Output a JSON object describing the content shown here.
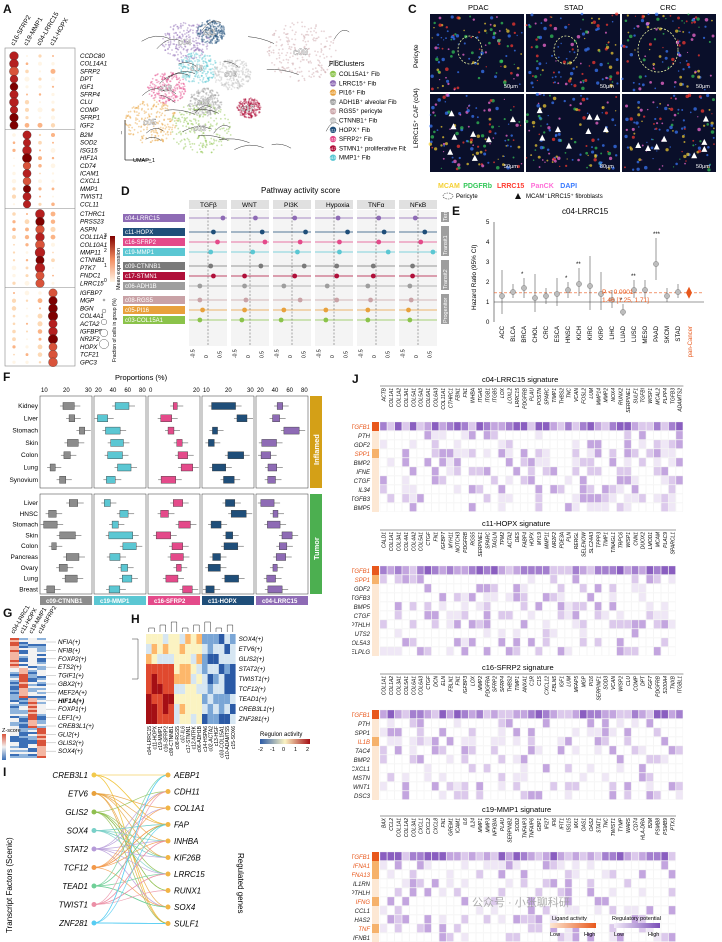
{
  "panels": {
    "A": "A",
    "B": "B",
    "C": "C",
    "D": "D",
    "E": "E",
    "F": "F",
    "G": "G",
    "H": "H",
    "I": "I",
    "J": "J"
  },
  "panelA": {
    "clusters": [
      "c16-SFRP2",
      "c19-MMP1",
      "c04-LRRC15",
      "c11-HOPX"
    ],
    "gene_groups": [
      [
        "CCDC80",
        "COL14A1",
        "SFRP2",
        "DPT",
        "IGF1",
        "SFRP4",
        "CLU",
        "COMP",
        "SFRP1",
        "IGF2"
      ],
      [
        "B2M",
        "SOD2",
        "ISG15",
        "HIF1A",
        "CD74",
        "ICAM1",
        "CXCL1",
        "MMP1",
        "TWIST1",
        "CCL11"
      ],
      [
        "CTHRC1",
        "PRSS23",
        "ASPN",
        "COL11A1",
        "COL10A1",
        "MMP11",
        "CTNNB1",
        "PTK7",
        "FNDC1",
        "LRRC15"
      ],
      [
        "IGFBP7",
        "MGP",
        "BGN",
        "COL4A1",
        "ACTA2",
        "IGFBP5",
        "NR2F2",
        "HOPX",
        "TCF21",
        "GPC3"
      ]
    ],
    "legend_mean": "Mean expression",
    "legend_frac": "Fraction of cells in group (%)",
    "colorbar_ticks": [
      "0",
      "1",
      "2",
      "3"
    ],
    "size_ticks": [
      "20",
      "40",
      "60",
      "80",
      "100"
    ]
  },
  "panelB": {
    "axis_x": "UMAP_1",
    "axis_y": "UMAP_2",
    "cluster_labels": [
      "c04",
      "c11",
      "c08",
      "c16",
      "c19",
      "c09",
      "c05",
      "c06",
      "c03",
      "c17"
    ],
    "legend_title": "FibClusters",
    "legend": [
      {
        "id": "c03",
        "label": "COL15A1⁺ Fib",
        "color": "#8bc34a"
      },
      {
        "id": "c04",
        "label": "LRRC15⁺ Fib",
        "color": "#8e6bb5"
      },
      {
        "id": "c05",
        "label": "PI16⁺ Fib",
        "color": "#e8a13c"
      },
      {
        "id": "c06",
        "label": "ADH1B⁺ alveolar Fib",
        "color": "#9e9e9e"
      },
      {
        "id": "c08",
        "label": "RGS5⁺ pericyte",
        "color": "#c9a2a6"
      },
      {
        "id": "c09",
        "label": "CTNNB1⁺ Fib",
        "color": "#bfbfbf"
      },
      {
        "id": "c11",
        "label": "HOPX⁺ Fib",
        "color": "#1f4e79"
      },
      {
        "id": "c16",
        "label": "SFRP2⁺ Fib",
        "color": "#e44a8a"
      },
      {
        "id": "c17",
        "label": "STMN1⁺ proliferative Fib",
        "color": "#b0103a"
      },
      {
        "id": "c19",
        "label": "MMP1⁺ Fib",
        "color": "#5bc7d3"
      }
    ]
  },
  "panelC": {
    "columns": [
      "PDAC",
      "STAD",
      "CRC"
    ],
    "rows": [
      "Pericyte",
      "LRRC15⁺ CAF (c04)"
    ],
    "scale": [
      "50μm",
      "50μm",
      "50μm",
      "50μm",
      "80μm",
      "50μm"
    ],
    "stain_labels": [
      {
        "text": "MCAM",
        "color": "#f5d033"
      },
      {
        "text": "PDGFRb",
        "color": "#34c759"
      },
      {
        "text": "LRRC15",
        "color": "#ff3b30"
      },
      {
        "text": "PanCK",
        "color": "#ff6fd8"
      },
      {
        "text": "DAPI",
        "color": "#3a7bff"
      }
    ],
    "legend_pericyte": "Pericyte",
    "legend_caf": "MCAM⁻LRRC15⁺ fibroblasts"
  },
  "panelD": {
    "title": "Pathway activity score",
    "pathways": [
      "TGFβ",
      "WNT",
      "PI3K",
      "Hypoxia",
      "TNFα",
      "NFκB"
    ],
    "groups": [
      {
        "name": "Terminal",
        "rows": [
          {
            "label": "c04-LRRC15",
            "color": "#8e6bb5"
          }
        ]
      },
      {
        "name": "Transit1",
        "rows": [
          {
            "label": "c11-HOPX",
            "color": "#1f4e79"
          },
          {
            "label": "c16-SFRP2",
            "color": "#e44a8a"
          },
          {
            "label": "c19-MMP1",
            "color": "#5bc7d3"
          }
        ]
      },
      {
        "name": "Transit2",
        "rows": [
          {
            "label": "c09-CTNNB1",
            "color": "#7a7a7a"
          },
          {
            "label": "c17-STMN1",
            "color": "#b0103a"
          },
          {
            "label": "c06-ADH1B",
            "color": "#9e9e9e"
          }
        ]
      },
      {
        "name": "Progenitor",
        "rows": [
          {
            "label": "c08-RGS5",
            "color": "#c9a2a6"
          },
          {
            "label": "c05-PI16",
            "color": "#e8a13c"
          },
          {
            "label": "c03-COL15A1",
            "color": "#8bc34a"
          }
        ]
      }
    ],
    "xticks": [
      "-0.5",
      "0",
      "0.5"
    ],
    "values": [
      [
        0.55,
        0.2,
        0.1,
        0.15,
        0.1,
        -0.1
      ],
      [
        0.2,
        0.45,
        0.5,
        0.5,
        0.3,
        0.25
      ],
      [
        0.35,
        0.55,
        0.3,
        0.2,
        0.1,
        0.1
      ],
      [
        0.1,
        0.1,
        0.2,
        0.2,
        0.45,
        0.55
      ],
      [
        0.1,
        0.4,
        0.45,
        0.1,
        -0.1,
        -0.2
      ],
      [
        0.2,
        -0.2,
        0.1,
        0.1,
        -0.1,
        -0.2
      ],
      [
        -0.3,
        -0.2,
        -0.3,
        -0.25,
        -0.3,
        -0.3
      ],
      [
        -0.3,
        -0.15,
        0.3,
        0.1,
        -0.2,
        -0.25
      ],
      [
        -0.2,
        -0.2,
        -0.3,
        -0.3,
        -0.3,
        -0.35
      ],
      [
        -0.3,
        -0.3,
        -0.4,
        -0.3,
        -0.3,
        -0.3
      ]
    ]
  },
  "panelE": {
    "title": "c04-LRRC15",
    "ylabel": "Hazard Ratio (95% CI)",
    "yticks": [
      "0",
      "1",
      "2",
      "3",
      "4",
      "5"
    ],
    "ylim": [
      0,
      5
    ],
    "categories": [
      "ACC",
      "BLCA",
      "BRCA",
      "CHOL",
      "CRC",
      "ESCA",
      "HNSC",
      "KICH",
      "KIRC",
      "KIRP",
      "LIHC",
      "LUAD",
      "LUSC",
      "MESO",
      "PAAD",
      "SKCM",
      "STAD"
    ],
    "hr": [
      1.3,
      1.5,
      1.7,
      1.2,
      1.3,
      1.4,
      1.6,
      1.9,
      1.8,
      1.4,
      1.1,
      0.5,
      1.6,
      1.6,
      2.9,
      1.3,
      1.5
    ],
    "lo": [
      0.4,
      1.2,
      1.2,
      0.5,
      0.9,
      0.8,
      1.2,
      1.3,
      0.6,
      0.6,
      0.7,
      0.3,
      1.2,
      1.2,
      2.1,
      1.0,
      1.2
    ],
    "hi": [
      2.6,
      1.9,
      2.2,
      2.4,
      1.7,
      2.2,
      2.0,
      2.7,
      3.3,
      2.5,
      1.6,
      0.9,
      2.1,
      2.1,
      4.2,
      1.7,
      1.9
    ],
    "stars": [
      "",
      "",
      "*",
      "",
      "",
      "",
      "*",
      "**",
      "",
      "",
      "",
      "*",
      "**",
      "",
      "***",
      "",
      ""
    ],
    "pan_label": "pan-Cancer",
    "pval": "P < 0.0001",
    "ci": "1.46 [1.25, 1.71]"
  },
  "panelF": {
    "title": "Proportions (%)",
    "inflamed_label": "Inflamed",
    "tumor_label": "Tumor",
    "inflamed_tissues": [
      "Kidney",
      "Liver",
      "Stomach",
      "Skin",
      "Colon",
      "Lung",
      "Synovium"
    ],
    "tumor_tissues": [
      "Liver",
      "HNSC",
      "Stomach",
      "Skin",
      "Colon",
      "Pancreas",
      "Ovary",
      "Lung",
      "Breast"
    ],
    "columns": [
      {
        "label": "c09-CTNNB1",
        "color": "#8c8c8c",
        "ticks": [
          "10",
          "20",
          "30"
        ]
      },
      {
        "label": "c19-MMP1",
        "color": "#5bc7d3",
        "ticks": [
          "20",
          "40",
          "60",
          "80"
        ]
      },
      {
        "label": "c16-SFRP2",
        "color": "#e44a8a",
        "ticks": [
          "0",
          "20"
        ]
      },
      {
        "label": "c11-HOPX",
        "color": "#1f4e79",
        "ticks": [
          "10",
          "20",
          "30"
        ]
      },
      {
        "label": "c04-LRRC15",
        "color": "#8e6bb5",
        "ticks": [
          "20",
          "40",
          "60",
          "80"
        ]
      }
    ]
  },
  "panelG": {
    "columns": [
      "c04-LRRC15",
      "c11-HOPX",
      "c19-MMP1",
      "c16-SFRP2"
    ],
    "genes": [
      "NFIA(+)",
      "NFIB(+)",
      "FOXP2(+)",
      "ETS2(+)",
      "TGIF1(+)",
      "GBX2(+)",
      "MEF2A(+)",
      "HIF1A(+)",
      "FOXP1(+)",
      "LEF1(+)",
      "CREB3L1(+)",
      "GLI2(+)",
      "GLIS2(+)",
      "SOX4(+)"
    ],
    "bold_gene": "HIF1A(+)",
    "scale_label": "Z-score",
    "scale_ticks": [
      "-2",
      "0",
      "2"
    ]
  },
  "panelH": {
    "genes": [
      "SOX4(+)",
      "ETV6(+)",
      "GLIS2(+)",
      "STAT2(+)",
      "TWIST1(+)",
      "TCF12(+)",
      "TEAD1(+)",
      "CREB3L1(+)",
      "ZNF281(+)"
    ],
    "columns": [
      "c04-LRRC15",
      "c11-HOPX",
      "c19-MMP1",
      "c16-SFRP2",
      "c09-CTNNB1",
      "c08-RGS5",
      "c07-IL6",
      "c17-STMN1",
      "c12-NTRK",
      "c06-ADH1B",
      "c14-HSPA6",
      "c02-ACTA2",
      "c13-HGF",
      "c03-COL15A1",
      "c10-ADAMTS5",
      "c15-SOX6"
    ],
    "scale_label": "Regulon activity",
    "scale_ticks": [
      "-2",
      "-1",
      "0",
      "1",
      "2"
    ]
  },
  "panelI": {
    "left_title": "Transcript Factors (Scenic)",
    "right_title": "Regulated genes",
    "tfs": [
      "CREB3L1",
      "ETV6",
      "GLIS2",
      "SOX4",
      "STAT2",
      "TCF12",
      "TEAD1",
      "TWIST1",
      "ZNF281"
    ],
    "genes": [
      "AEBP1",
      "CDH11",
      "COL1A1",
      "FAP",
      "INHBA",
      "KIF26B",
      "LRRC15",
      "RUNX1",
      "SOX4",
      "SULF1"
    ]
  },
  "panelJ": {
    "signatures": [
      {
        "title": "c04-LRRC15 signature",
        "ligands": [
          "TGFB1",
          "PTH",
          "GDF2",
          "SPP1",
          "BMP2",
          "IFNE",
          "CTGF",
          "IL34",
          "TGFB3",
          "BMP5"
        ],
        "orange": [
          "TGFB1",
          "SPP1"
        ],
        "receptors": [
          "ACTB",
          "COL1A1",
          "COL1A2",
          "COL3A1",
          "COL5A1",
          "COL5A2",
          "COL6A1",
          "COL6A3",
          "COL11A1",
          "CTHRC1",
          "FBN1",
          "FN1",
          "INHBA",
          "ITGA5",
          "ITGB1",
          "ITGB5",
          "LOX",
          "LOXL2",
          "LRRC15",
          "PDGFRB",
          "PLAU",
          "POSTN",
          "SPARC",
          "TIMP1",
          "THBS2",
          "TNC",
          "VCAN",
          "FOSL2",
          "LUM",
          "MMP14",
          "MMP2",
          "NOX4",
          "RUNX2",
          "SERPINE1",
          "SULF1",
          "TGFBI",
          "WISP1",
          "MCAL2",
          "PLPP4",
          "TGFB3",
          "ADAMTS2"
        ]
      },
      {
        "title": "c11-HOPX signature",
        "ligands": [
          "TGFB1",
          "SPP1",
          "GDF2",
          "TGFB3",
          "BMP5",
          "CTGF",
          "PTHLH",
          "UTS2",
          "COL5A3",
          "SELPLG"
        ],
        "orange": [
          "TGFB1",
          "SPP1"
        ],
        "receptors": [
          "CALD1",
          "COL1A1",
          "COL3A1",
          "COL4A1",
          "COL4A2",
          "COL5A1",
          "CTGF",
          "FN1",
          "IGFBP7",
          "MYH11",
          "NOTCH3",
          "PDGFRB",
          "RGS5",
          "SERPINE1",
          "SPARC",
          "TAGLN",
          "TPM2",
          "ACTA2",
          "DES",
          "FABP4",
          "HOPX",
          "MYL9",
          "MMP11",
          "NR2F2",
          "PDE3A",
          "PLN",
          "RERGL",
          "SELENOW",
          "SLC24A3",
          "TPPP3",
          "TIMP1",
          "TINAGL1",
          "TRPC6",
          "WISP1",
          "CNN1",
          "DUOX2",
          "LMOD1",
          "MCAM",
          "PLAC9",
          "SPARCL1"
        ]
      },
      {
        "title": "c16-SFRP2 signature",
        "ligands": [
          "TGFB1",
          "PTH",
          "SPP1",
          "IL1B",
          "TAC4",
          "BMP2",
          "CXCL1",
          "MSTN",
          "WNT1",
          "DSC3"
        ],
        "orange": [
          "TGFB1",
          "IL1B"
        ],
        "receptors": [
          "COL1A1",
          "COL1A2",
          "COL3A1",
          "COL5A1",
          "COL6A1",
          "COL6A3",
          "CTGF",
          "DCN",
          "ELN",
          "FBLN1",
          "FN1",
          "IGFBP3",
          "LOX",
          "MMP2",
          "PDGFRA",
          "SFRP2",
          "SFRP4",
          "THBS2",
          "TIMP1",
          "ANXA1",
          "C1R",
          "C1S",
          "CXCL12",
          "FBLN5",
          "IGF1",
          "LUM",
          "MFAP5",
          "MGP",
          "PI16",
          "SERPINF1",
          "SOD3",
          "VCAN",
          "WISP2",
          "CLU",
          "COMP",
          "DPT",
          "FGF7",
          "PDGFRB",
          "S100A4",
          "TNXB",
          "ITGBL1"
        ]
      },
      {
        "title": "c19-MMP1 signature",
        "ligands": [
          "TGFB1",
          "IFNA1",
          "IFNA13",
          "IL1RN",
          "PTHLH",
          "IFNG",
          "CCL1",
          "HAS2",
          "TNF",
          "IFNB1"
        ],
        "orange": [
          "TGFB1",
          "IFNA1",
          "IFNA13",
          "IFNG",
          "TNF"
        ],
        "receptors": [
          "BAX",
          "CCL2",
          "COL1A1",
          "COL1A2",
          "COL3A1",
          "CXCL1",
          "CXCL2",
          "CXCL8",
          "FN1",
          "GREM1",
          "ICAM1",
          "IL6",
          "IL24",
          "MMP1",
          "MMP3",
          "NFKBIA",
          "PLAU",
          "SERPINB2",
          "SOD2",
          "TNFAIP3",
          "TNFAIP6",
          "GBP1",
          "IFI27",
          "IFI6",
          "IFIT1",
          "ISG15",
          "MX1",
          "OAS1",
          "OAS2",
          "STAT1",
          "TNC",
          "TWIST1",
          "TYMP",
          "WARS",
          "CD74",
          "HLA-DRA",
          "B2M",
          "PSMB8",
          "PSMB9",
          "PTX3"
        ]
      }
    ],
    "legend_ligand": "Ligand activity",
    "legend_regulatory": "Regulatory potential",
    "legend_low": "Low",
    "legend_high": "High"
  },
  "watermark": "公众号 · 小张聊科研"
}
